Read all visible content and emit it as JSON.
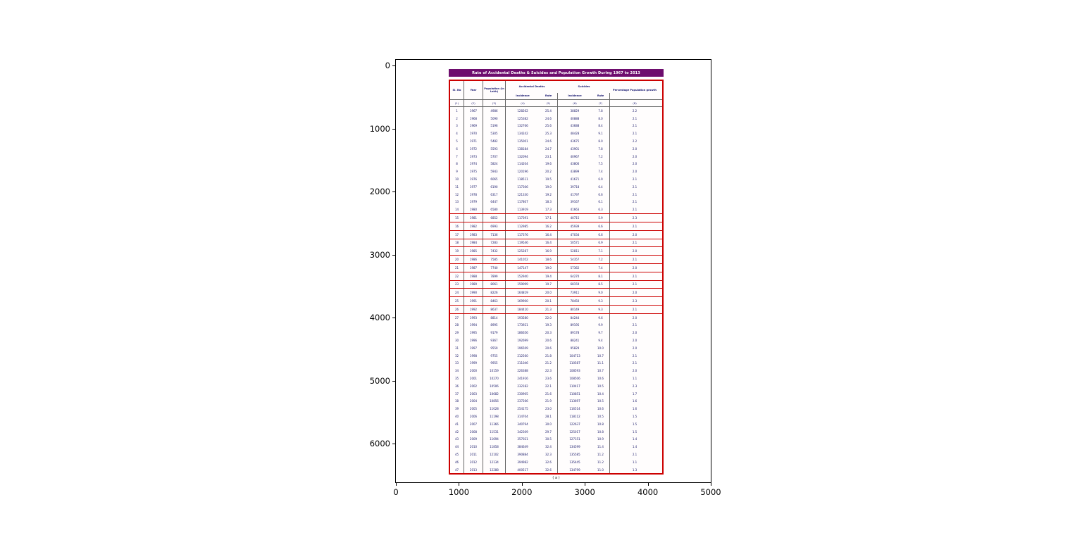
{
  "axes": {
    "x_ticks": [
      "0",
      "1000",
      "2000",
      "3000",
      "4000",
      "5000"
    ],
    "y_ticks": [
      "0",
      "1000",
      "2000",
      "3000",
      "4000",
      "5000",
      "6000"
    ]
  },
  "chart_data": {
    "type": "table",
    "title": "Rate of Accidental Deaths & Suicides and Population Growth During 1967 to 2013",
    "caption": "( a )",
    "colors": {
      "title_bg": "#6e0d6e",
      "title_text": "#ffffff",
      "table_border": "#cc0000",
      "text": "#20206e"
    },
    "columns": {
      "sl": "Sl. No",
      "year": "Year",
      "pop": "Population (in Lakh)",
      "ad": "Accidental Deaths",
      "su": "Suicides",
      "pct": "Percentage Population growth",
      "incidence": "Incidence",
      "rate": "Rate",
      "num_row": [
        "(1)",
        "(2)",
        "(3)",
        "(4)",
        "(5)",
        "(6)",
        "(7)",
        "(8)"
      ]
    },
    "red_highlight_rows": [
      15,
      16,
      17,
      18,
      19,
      20,
      21,
      22,
      23,
      24,
      25,
      26
    ],
    "rows": [
      [
        "1",
        "1967",
        "4986",
        "128262",
        "25.4",
        "38829",
        "7.8",
        "2.2"
      ],
      [
        "2",
        "1968",
        "5090",
        "125382",
        "24.6",
        "40888",
        "8.0",
        "2.1"
      ],
      [
        "3",
        "1969",
        "5196",
        "132766",
        "25.6",
        "43688",
        "8.4",
        "2.1"
      ],
      [
        "4",
        "1970",
        "5305",
        "134242",
        "25.3",
        "48428",
        "9.1",
        "2.1"
      ],
      [
        "5",
        "1971",
        "5482",
        "135001",
        "24.6",
        "43675",
        "8.0",
        "2.2"
      ],
      [
        "6",
        "1972",
        "5593",
        "138184",
        "24.7",
        "43901",
        "7.8",
        "2.0"
      ],
      [
        "7",
        "1973",
        "5707",
        "132094",
        "23.1",
        "40967",
        "7.2",
        "2.0"
      ],
      [
        "8",
        "1974",
        "5824",
        "114204",
        "19.6",
        "43806",
        "7.5",
        "2.0"
      ],
      [
        "9",
        "1975",
        "5943",
        "120196",
        "20.2",
        "43899",
        "7.4",
        "2.0"
      ],
      [
        "10",
        "1976",
        "6065",
        "118511",
        "19.5",
        "41671",
        "6.9",
        "2.1"
      ],
      [
        "11",
        "1977",
        "6190",
        "117306",
        "19.0",
        "39718",
        "6.4",
        "2.1"
      ],
      [
        "12",
        "1978",
        "6317",
        "121330",
        "19.2",
        "41797",
        "6.6",
        "2.1"
      ],
      [
        "13",
        "1979",
        "6447",
        "117807",
        "18.3",
        "39167",
        "6.1",
        "2.1"
      ],
      [
        "14",
        "1980",
        "6580",
        "113919",
        "17.3",
        "41663",
        "6.3",
        "2.1"
      ],
      [
        "15",
        "1981",
        "6852",
        "117391",
        "17.1",
        "40715",
        "5.9",
        "2.3"
      ],
      [
        "16",
        "1982",
        "6993",
        "112985",
        "16.2",
        "45939",
        "6.6",
        "2.1"
      ],
      [
        "17",
        "1983",
        "7136",
        "117376",
        "16.4",
        "47034",
        "6.6",
        "2.0"
      ],
      [
        "18",
        "1984",
        "7283",
        "119546",
        "16.4",
        "50571",
        "6.9",
        "2.1"
      ],
      [
        "19",
        "1985",
        "7432",
        "125287",
        "16.9",
        "52811",
        "7.1",
        "2.0"
      ],
      [
        "20",
        "1986",
        "7585",
        "141052",
        "18.6",
        "54357",
        "7.2",
        "2.1"
      ],
      [
        "21",
        "1987",
        "7740",
        "147147",
        "19.0",
        "57362",
        "7.4",
        "2.0"
      ],
      [
        "22",
        "1988",
        "7899",
        "152940",
        "19.4",
        "64270",
        "8.1",
        "2.1"
      ],
      [
        "23",
        "1989",
        "8061",
        "159099",
        "19.7",
        "68159",
        "8.5",
        "2.1"
      ],
      [
        "24",
        "1990",
        "8226",
        "164819",
        "20.0",
        "73911",
        "9.0",
        "2.0"
      ],
      [
        "25",
        "1991",
        "8463",
        "169900",
        "20.1",
        "78450",
        "9.3",
        "2.3"
      ],
      [
        "26",
        "1992",
        "8637",
        "184410",
        "21.3",
        "80149",
        "9.3",
        "2.1"
      ],
      [
        "27",
        "1993",
        "8814",
        "193580",
        "22.0",
        "84244",
        "9.6",
        "2.0"
      ],
      [
        "28",
        "1994",
        "8995",
        "173921",
        "19.3",
        "89195",
        "9.9",
        "2.1"
      ],
      [
        "29",
        "1995",
        "9179",
        "186656",
        "20.3",
        "89178",
        "9.7",
        "2.0"
      ],
      [
        "30",
        "1996",
        "9367",
        "192699",
        "20.6",
        "88241",
        "9.4",
        "2.0"
      ],
      [
        "31",
        "1997",
        "9559",
        "196509",
        "20.6",
        "95829",
        "10.0",
        "2.0"
      ],
      [
        "32",
        "1998",
        "9755",
        "212560",
        "21.8",
        "104713",
        "10.7",
        "2.1"
      ],
      [
        "33",
        "1999",
        "9955",
        "211046",
        "21.2",
        "110587",
        "11.1",
        "2.1"
      ],
      [
        "34",
        "2000",
        "10159",
        "226388",
        "22.3",
        "108593",
        "10.7",
        "2.0"
      ],
      [
        "35",
        "2001",
        "10270",
        "241916",
        "23.6",
        "108506",
        "10.6",
        "1.1"
      ],
      [
        "36",
        "2002",
        "10506",
        "232182",
        "22.1",
        "110417",
        "10.5",
        "2.3"
      ],
      [
        "37",
        "2003",
        "10682",
        "230905",
        "21.6",
        "110851",
        "10.4",
        "1.7"
      ],
      [
        "38",
        "2004",
        "10856",
        "237266",
        "21.9",
        "113697",
        "10.5",
        "1.6"
      ],
      [
        "39",
        "2005",
        "11028",
        "254175",
        "23.0",
        "116514",
        "10.6",
        "1.6"
      ],
      [
        "40",
        "2006",
        "11198",
        "314704",
        "28.1",
        "118112",
        "10.5",
        "1.5"
      ],
      [
        "41",
        "2007",
        "11366",
        "340794",
        "30.0",
        "122637",
        "10.8",
        "1.5"
      ],
      [
        "42",
        "2008",
        "11531",
        "342309",
        "29.7",
        "125017",
        "10.8",
        "1.5"
      ],
      [
        "43",
        "2009",
        "11694",
        "357021",
        "30.5",
        "127151",
        "10.9",
        "1.4"
      ],
      [
        "44",
        "2010",
        "11858",
        "384649",
        "32.4",
        "134599",
        "11.4",
        "1.4"
      ],
      [
        "45",
        "2011",
        "12102",
        "390884",
        "32.3",
        "135585",
        "11.2",
        "2.1"
      ],
      [
        "46",
        "2012",
        "12134",
        "394982",
        "32.6",
        "135445",
        "11.2",
        "1.1"
      ],
      [
        "47",
        "2013",
        "12288",
        "400517",
        "32.6",
        "134799",
        "11.0",
        "1.3"
      ]
    ]
  }
}
